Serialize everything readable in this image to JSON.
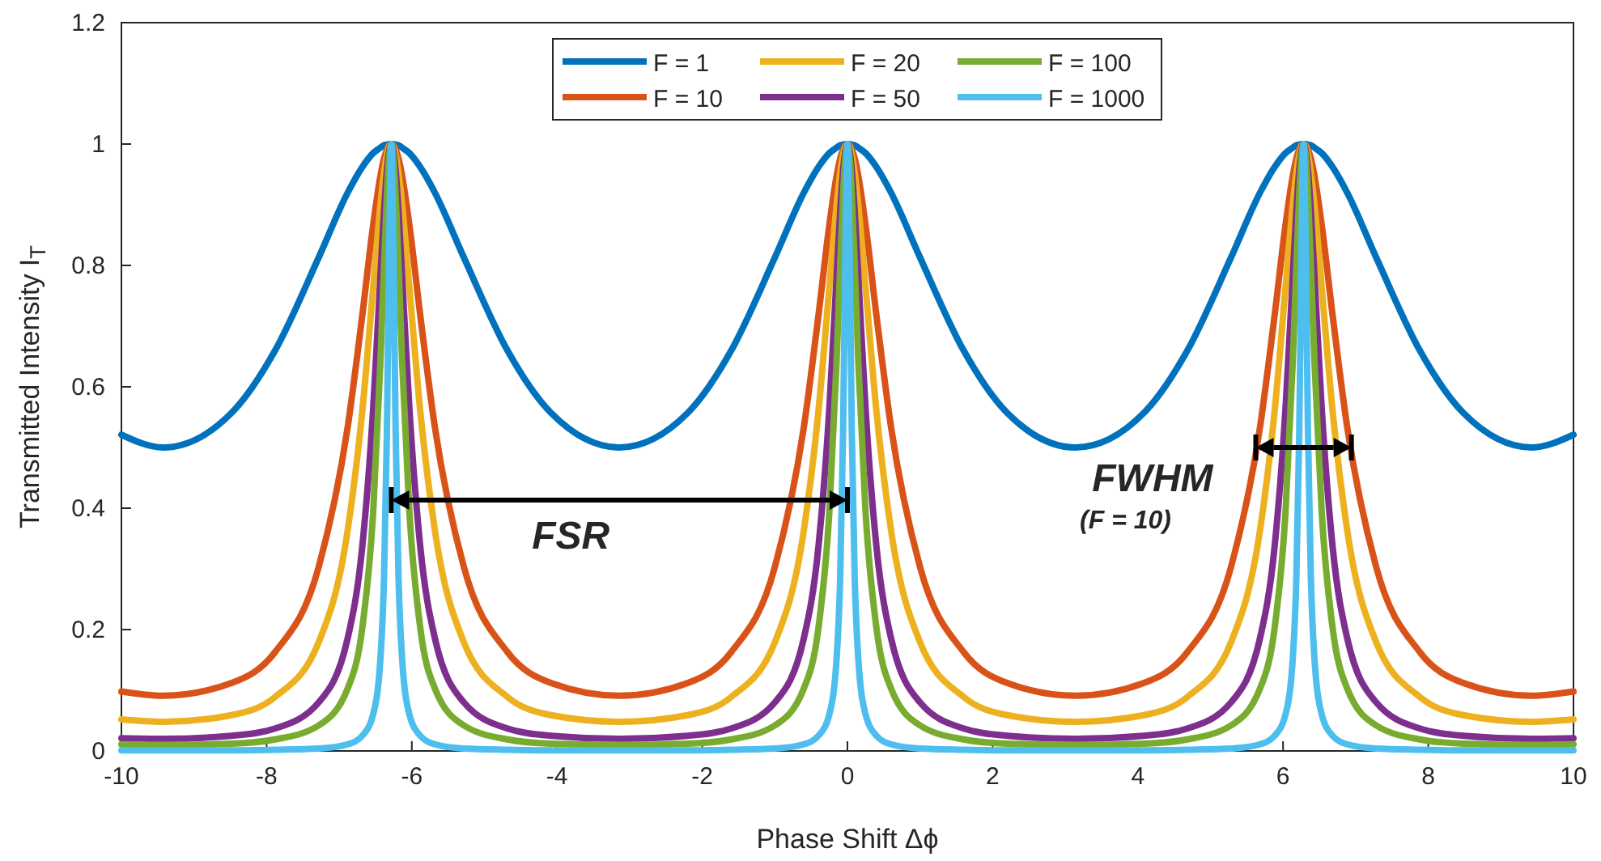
{
  "chart_data": {
    "type": "line",
    "xlabel": "Phase Shift Δϕ",
    "ylabel": "Transmitted Intensity I$_{T}$",
    "x": [
      -10,
      -9.425,
      -8.483,
      -7.883,
      -7.283,
      -6.883,
      -6.683,
      -6.533,
      -6.433,
      -6.383,
      -6.343,
      -6.313,
      -6.283,
      -6.253,
      -6.223,
      -6.183,
      -6.133,
      -6.033,
      -5.883,
      -5.683,
      -5.283,
      -4.683,
      -4.083,
      -3.142,
      -2.2,
      -1.6,
      -1,
      -0.6,
      -0.4,
      -0.25,
      -0.15,
      -0.1,
      -0.06,
      -0.03,
      0,
      0.03,
      0.06,
      0.1,
      0.15,
      0.25,
      0.4,
      0.6,
      1,
      1.6,
      2.2,
      3.142,
      4.083,
      4.683,
      5.283,
      5.683,
      5.883,
      6.033,
      6.133,
      6.183,
      6.223,
      6.253,
      6.283,
      6.313,
      6.343,
      6.383,
      6.433,
      6.533,
      6.683,
      6.883,
      7.283,
      7.883,
      8.483,
      9.425,
      10
    ],
    "series": [
      {
        "name": "F = 1",
        "color": "#0072bd",
        "values": [
          0.521,
          0.5,
          0.557,
          0.66,
          0.813,
          0.92,
          0.962,
          0.985,
          0.994,
          0.998,
          0.999,
          1.0,
          1,
          1.0,
          0.999,
          0.998,
          0.994,
          0.985,
          0.962,
          0.92,
          0.813,
          0.66,
          0.557,
          0.5,
          0.557,
          0.66,
          0.813,
          0.92,
          0.962,
          0.985,
          0.994,
          0.998,
          0.999,
          1.0,
          1,
          1.0,
          0.999,
          0.998,
          0.994,
          0.985,
          0.962,
          0.92,
          0.813,
          0.66,
          0.557,
          0.5,
          0.557,
          0.66,
          0.813,
          0.92,
          0.962,
          0.985,
          0.994,
          0.998,
          0.999,
          1.0,
          1,
          1.0,
          0.999,
          0.998,
          0.994,
          0.985,
          0.962,
          0.92,
          0.813,
          0.66,
          0.557,
          0.5,
          0.521
        ]
      },
      {
        "name": "F = 10",
        "color": "#d95319",
        "values": [
          0.098,
          0.091,
          0.112,
          0.163,
          0.303,
          0.534,
          0.717,
          0.866,
          0.947,
          0.976,
          0.991,
          0.998,
          1,
          0.998,
          0.991,
          0.976,
          0.947,
          0.866,
          0.717,
          0.534,
          0.303,
          0.163,
          0.112,
          0.091,
          0.112,
          0.163,
          0.303,
          0.534,
          0.717,
          0.866,
          0.947,
          0.976,
          0.991,
          0.998,
          1,
          0.998,
          0.991,
          0.976,
          0.947,
          0.866,
          0.717,
          0.534,
          0.303,
          0.163,
          0.112,
          0.091,
          0.112,
          0.163,
          0.303,
          0.534,
          0.717,
          0.866,
          0.947,
          0.976,
          0.991,
          0.998,
          1,
          0.998,
          0.991,
          0.976,
          0.947,
          0.866,
          0.717,
          0.534,
          0.303,
          0.163,
          0.112,
          0.091,
          0.098
        ]
      },
      {
        "name": "F = 20",
        "color": "#edb120",
        "values": [
          0.052,
          0.048,
          0.059,
          0.089,
          0.179,
          0.364,
          0.559,
          0.763,
          0.899,
          0.952,
          0.982,
          0.996,
          1,
          0.996,
          0.982,
          0.952,
          0.899,
          0.763,
          0.559,
          0.364,
          0.179,
          0.089,
          0.059,
          0.048,
          0.059,
          0.089,
          0.179,
          0.364,
          0.559,
          0.763,
          0.899,
          0.952,
          0.982,
          0.996,
          1,
          0.996,
          0.982,
          0.952,
          0.899,
          0.763,
          0.559,
          0.364,
          0.179,
          0.089,
          0.059,
          0.048,
          0.059,
          0.089,
          0.179,
          0.364,
          0.559,
          0.763,
          0.899,
          0.952,
          0.982,
          0.996,
          1,
          0.996,
          0.982,
          0.952,
          0.899,
          0.763,
          0.559,
          0.364,
          0.179,
          0.089,
          0.059,
          0.048,
          0.052
        ]
      },
      {
        "name": "F = 50",
        "color": "#7e2f8e",
        "values": [
          0.021,
          0.02,
          0.025,
          0.037,
          0.08,
          0.186,
          0.336,
          0.563,
          0.781,
          0.889,
          0.957,
          0.989,
          1,
          0.989,
          0.957,
          0.889,
          0.781,
          0.563,
          0.336,
          0.186,
          0.08,
          0.037,
          0.025,
          0.02,
          0.025,
          0.037,
          0.08,
          0.186,
          0.336,
          0.563,
          0.781,
          0.889,
          0.957,
          0.989,
          1,
          0.989,
          0.957,
          0.889,
          0.781,
          0.563,
          0.336,
          0.186,
          0.08,
          0.037,
          0.025,
          0.02,
          0.025,
          0.037,
          0.08,
          0.186,
          0.336,
          0.563,
          0.781,
          0.889,
          0.957,
          0.989,
          1,
          0.989,
          0.957,
          0.889,
          0.781,
          0.563,
          0.336,
          0.186,
          0.08,
          0.037,
          0.025,
          0.02,
          0.021
        ]
      },
      {
        "name": "F = 100",
        "color": "#77ac30",
        "values": [
          0.011,
          0.01,
          0.012,
          0.019,
          0.042,
          0.103,
          0.202,
          0.392,
          0.64,
          0.8,
          0.917,
          0.978,
          1,
          0.978,
          0.917,
          0.8,
          0.64,
          0.392,
          0.202,
          0.103,
          0.042,
          0.019,
          0.012,
          0.01,
          0.012,
          0.019,
          0.042,
          0.103,
          0.202,
          0.392,
          0.64,
          0.8,
          0.917,
          0.978,
          1,
          0.978,
          0.917,
          0.8,
          0.64,
          0.392,
          0.202,
          0.103,
          0.042,
          0.019,
          0.012,
          0.01,
          0.012,
          0.019,
          0.042,
          0.103,
          0.202,
          0.392,
          0.64,
          0.8,
          0.917,
          0.978,
          1,
          0.978,
          0.917,
          0.8,
          0.64,
          0.392,
          0.202,
          0.103,
          0.042,
          0.019,
          0.012,
          0.01,
          0.011
        ]
      },
      {
        "name": "F = 1000",
        "color": "#4dbeee",
        "values": [
          0.001,
          0.001,
          0.001,
          0.002,
          0.004,
          0.011,
          0.025,
          0.06,
          0.151,
          0.286,
          0.526,
          0.816,
          1,
          0.816,
          0.526,
          0.286,
          0.151,
          0.06,
          0.025,
          0.011,
          0.004,
          0.002,
          0.001,
          0.001,
          0.001,
          0.002,
          0.004,
          0.011,
          0.025,
          0.06,
          0.151,
          0.286,
          0.526,
          0.816,
          1,
          0.816,
          0.526,
          0.286,
          0.151,
          0.06,
          0.025,
          0.011,
          0.004,
          0.002,
          0.001,
          0.001,
          0.001,
          0.002,
          0.004,
          0.011,
          0.025,
          0.06,
          0.151,
          0.286,
          0.526,
          0.816,
          1,
          0.816,
          0.526,
          0.286,
          0.151,
          0.06,
          0.025,
          0.011,
          0.004,
          0.002,
          0.001,
          0.001,
          0.001
        ]
      }
    ],
    "xlim": [
      -10,
      10
    ],
    "xticks": [
      -10,
      -8,
      -6,
      -4,
      -2,
      0,
      2,
      4,
      6,
      8,
      10
    ],
    "ylim": [
      0,
      1.2
    ],
    "yticks": [
      0,
      0.2,
      0.4,
      0.6,
      0.8,
      1,
      1.2
    ],
    "legend": "top",
    "annotations": [
      "FSR",
      {
        "text": "FWHM",
        "x": 6.283,
        "y": 0.5
      },
      "(F = 10)"
    ]
  }
}
